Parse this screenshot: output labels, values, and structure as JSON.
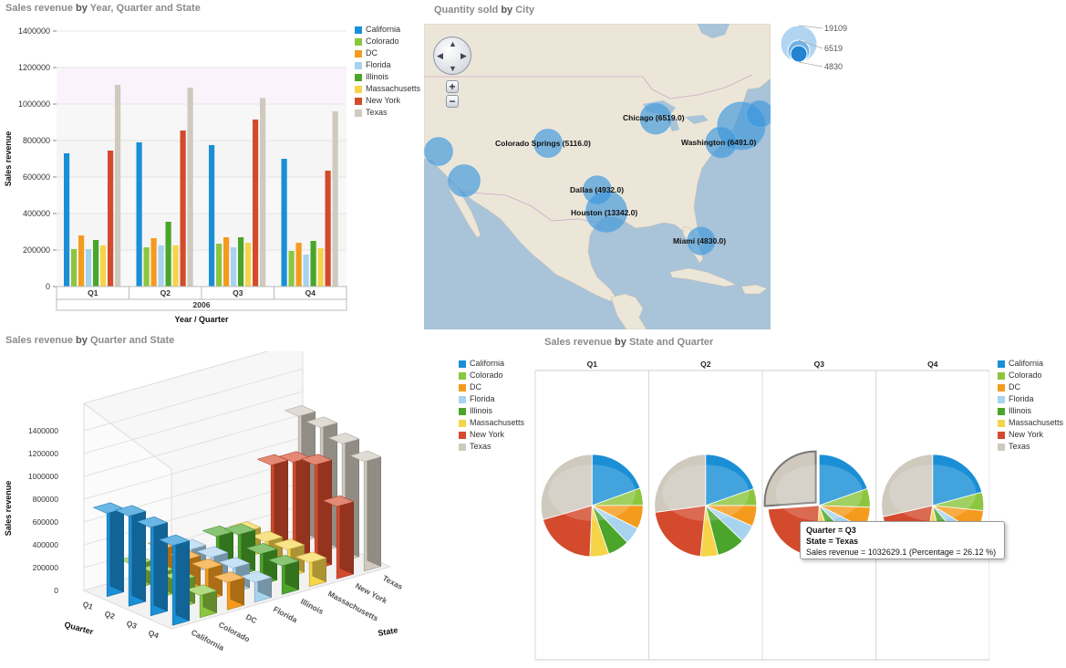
{
  "titles": {
    "bar2d": {
      "pre": "Sales revenue",
      "by": " by ",
      "post": "Year, Quarter and State"
    },
    "map": {
      "pre": "Quantity sold",
      "by": " by ",
      "post": "City"
    },
    "bar3d": {
      "pre": "Sales revenue",
      "by": " by ",
      "post": "Quarter and State"
    },
    "pie": {
      "pre": "Sales revenue",
      "by": " by ",
      "post": "State and Quarter"
    }
  },
  "colors": {
    "California": "#1a8fd6",
    "Colorado": "#8cc63f",
    "DC": "#f49b1e",
    "Florida": "#a7d3ef",
    "Illinois": "#4aa52a",
    "Massachusetts": "#f6d44a",
    "New York": "#d44a2c",
    "Texas": "#cfc9be"
  },
  "legend": [
    "California",
    "Colorado",
    "DC",
    "Florida",
    "Illinois",
    "Massachusetts",
    "New York",
    "Texas"
  ],
  "chart_data": [
    {
      "type": "bar",
      "title": "Sales revenue by Year, Quarter and State",
      "xlabel": "Year / Quarter",
      "ylabel": "Sales revenue",
      "year": "2006",
      "categories": [
        "Q1",
        "Q2",
        "Q3",
        "Q4"
      ],
      "ylim": [
        0,
        1400000
      ],
      "yticks": [
        "0",
        "200000",
        "400000",
        "600000",
        "800000",
        "1000000",
        "1200000",
        "1400000"
      ],
      "series": [
        {
          "name": "California",
          "values": [
            730000,
            790000,
            775000,
            700000
          ]
        },
        {
          "name": "Colorado",
          "values": [
            205000,
            215000,
            235000,
            195000
          ]
        },
        {
          "name": "DC",
          "values": [
            280000,
            265000,
            270000,
            240000
          ]
        },
        {
          "name": "Florida",
          "values": [
            205000,
            225000,
            215000,
            175000
          ]
        },
        {
          "name": "Illinois",
          "values": [
            255000,
            355000,
            270000,
            250000
          ]
        },
        {
          "name": "Massachusetts",
          "values": [
            225000,
            225000,
            240000,
            210000
          ]
        },
        {
          "name": "New York",
          "values": [
            745000,
            855000,
            915000,
            635000
          ]
        },
        {
          "name": "Texas",
          "values": [
            1105000,
            1090000,
            1032629.1,
            960000
          ]
        }
      ]
    },
    {
      "type": "scatter",
      "title": "Quantity sold by City",
      "size_legend": [
        "19109",
        "6519",
        "4830"
      ],
      "points": [
        {
          "label": "Chicago (6519.0)",
          "value": 6519.0
        },
        {
          "label": "Colorado Springs (5116.0)",
          "value": 5116.0
        },
        {
          "label": "Washington (6491.0)",
          "value": 6491.0
        },
        {
          "label": "Dallas (4932.0)",
          "value": 4932.0
        },
        {
          "label": "Houston (13342.0)",
          "value": 13342.0
        },
        {
          "label": "Miami (4830.0)",
          "value": 4830.0
        }
      ]
    },
    {
      "type": "bar",
      "title": "Sales revenue by Quarter and State",
      "ylabel": "Sales revenue",
      "xlabel": "State",
      "zlabel": "Quarter",
      "quarters": [
        "Q1",
        "Q2",
        "Q3",
        "Q4"
      ],
      "states": [
        "California",
        "Colorado",
        "DC",
        "Florida",
        "Illinois",
        "Massachusetts",
        "New York",
        "Texas"
      ],
      "yticks": [
        "0",
        "200000",
        "400000",
        "600000",
        "800000",
        "1000000",
        "1200000",
        "1400000"
      ]
    },
    {
      "type": "pie",
      "title": "Sales revenue by State and Quarter",
      "categories": [
        "Q1",
        "Q2",
        "Q3",
        "Q4"
      ],
      "tooltip": {
        "quarter": "Quarter = Q3",
        "state": "State = Texas",
        "revenue": "Sales revenue = 1032629.1 (Percentage = 26.12 %)"
      }
    }
  ],
  "map": {
    "zoom_in": "+",
    "zoom_out": "−"
  }
}
